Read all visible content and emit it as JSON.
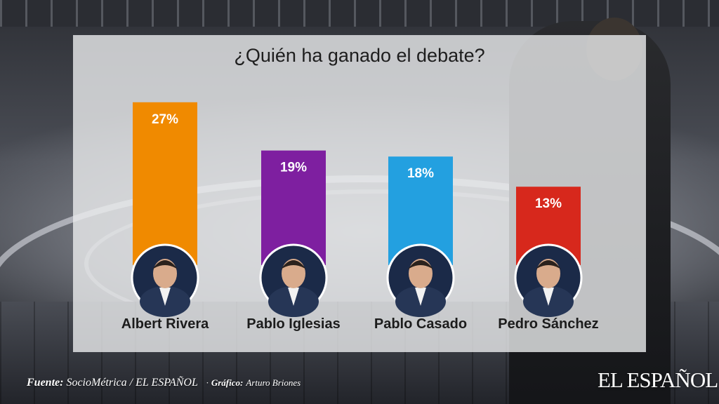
{
  "chart_data": {
    "type": "bar",
    "title": "¿Quién ha ganado el debate?",
    "categories": [
      "Albert Rivera",
      "Pablo Iglesias",
      "Pablo Casado",
      "Pedro Sánchez"
    ],
    "values": [
      27,
      19,
      18,
      13
    ],
    "value_labels": [
      "27%",
      "19%",
      "18%",
      "13%"
    ],
    "unit": "%",
    "colors": [
      "#f08a00",
      "#7e1fa0",
      "#23a0e0",
      "#d7281c"
    ],
    "ylim": [
      0,
      27
    ],
    "xlabel": "",
    "ylabel": "",
    "grid": false
  },
  "credits": {
    "source_label": "Fuente:",
    "source_value": "SocioMétrica / EL ESPAÑOL",
    "sep": "·",
    "graphic_label": "Gráfico:",
    "graphic_value": "Arturo Briones"
  },
  "logo": {
    "text": "EL ESPAÑOL"
  }
}
